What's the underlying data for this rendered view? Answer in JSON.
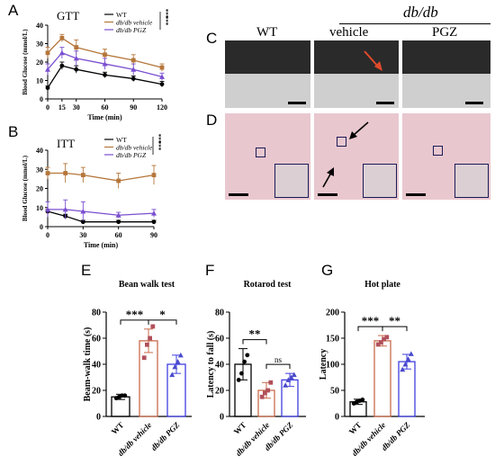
{
  "panel_letters": [
    "A",
    "B",
    "C",
    "D",
    "E",
    "F",
    "G"
  ],
  "colors": {
    "wt": "#000000",
    "vehicle": "#b5763a",
    "pgz": "#7a4ed0",
    "bar_vehicle": "#c96a4a",
    "bar_pgz": "#3f3fe0",
    "point_vehicle": "#b0505a",
    "point_pgz": "#4a4acc"
  },
  "histology": {
    "labels": {
      "wt": "WT",
      "vehicle": "vehicle",
      "pgz": "PGZ",
      "group": "db/db"
    }
  },
  "chart_data": [
    {
      "id": "A",
      "type": "line",
      "title": "GTT",
      "xlabel": "Time (min)",
      "ylabel": "Blood Glucose (mmol/L)",
      "xlim": [
        0,
        120
      ],
      "ylim": [
        0,
        40
      ],
      "xticks": [
        "0",
        "15",
        "30",
        "60",
        "90",
        "120"
      ],
      "yticks": [
        "0",
        "10",
        "20",
        "30",
        "40"
      ],
      "x": [
        0,
        15,
        30,
        60,
        90,
        120
      ],
      "series": [
        {
          "name": "WT",
          "values": [
            6,
            18,
            16,
            13,
            11,
            8
          ],
          "err": [
            1,
            2,
            2,
            1.5,
            1.5,
            1.5
          ]
        },
        {
          "name": "db/db vehicle",
          "values": [
            25,
            33,
            28,
            24,
            21,
            17
          ],
          "err": [
            3,
            2,
            4,
            3,
            3,
            2
          ]
        },
        {
          "name": "db/db PGZ",
          "values": [
            16,
            25,
            22,
            19,
            16,
            12
          ],
          "err": [
            3,
            3,
            4,
            3,
            3,
            2
          ]
        }
      ],
      "annotations": [
        "***",
        "***"
      ]
    },
    {
      "id": "B",
      "type": "line",
      "title": "ITT",
      "xlabel": "Time (min)",
      "ylabel": "Blood Glucose (mmol/L)",
      "xlim": [
        0,
        90
      ],
      "ylim": [
        0,
        40
      ],
      "xticks": [
        "0",
        "30",
        "60",
        "90"
      ],
      "yticks": [
        "0",
        "10",
        "20",
        "30",
        "40"
      ],
      "x": [
        0,
        15,
        30,
        60,
        90
      ],
      "series": [
        {
          "name": "WT",
          "values": [
            8,
            5.5,
            2.5,
            2.5,
            2.5
          ],
          "err": [
            1,
            1,
            0.8,
            0.8,
            0.8
          ]
        },
        {
          "name": "db/db vehicle",
          "values": [
            28,
            28,
            27,
            24,
            27
          ],
          "err": [
            3,
            5,
            4,
            4,
            5
          ]
        },
        {
          "name": "db/db PGZ",
          "values": [
            9,
            9,
            8,
            6,
            7
          ],
          "err": [
            4,
            5,
            5,
            1.5,
            2
          ]
        }
      ],
      "annotations": [
        "***",
        "***"
      ]
    },
    {
      "id": "E",
      "type": "bar",
      "title": "Bean walk test",
      "ylabel": "Beam-walk time (s)",
      "categories": [
        "WT",
        "db/db vehicle",
        "db/db PGZ"
      ],
      "values": [
        15,
        58,
        40
      ],
      "err": [
        2,
        9,
        7
      ],
      "ylim": [
        0,
        80
      ],
      "yticks": [
        "0",
        "20",
        "40",
        "60",
        "80"
      ],
      "points": [
        [
          14,
          15,
          16,
          16
        ],
        [
          45,
          55,
          60,
          69
        ],
        [
          32,
          38,
          42,
          47
        ]
      ],
      "significance": [
        {
          "from": 0,
          "to": 1,
          "label": "***"
        },
        {
          "from": 1,
          "to": 2,
          "label": "*"
        }
      ]
    },
    {
      "id": "F",
      "type": "bar",
      "title": "Rotarod test",
      "ylabel": "Latency to fall (s)",
      "categories": [
        "WT",
        "db/db vehicle",
        "db/db PGZ"
      ],
      "values": [
        40,
        20,
        28
      ],
      "err": [
        12,
        6,
        5
      ],
      "ylim": [
        0,
        80
      ],
      "yticks": [
        "0",
        "20",
        "40",
        "60",
        "80"
      ],
      "points": [
        [
          28,
          33,
          42,
          47
        ],
        [
          15,
          18,
          20,
          26
        ],
        [
          24,
          28,
          30,
          32
        ]
      ],
      "significance": [
        {
          "from": 0,
          "to": 1,
          "label": "**"
        },
        {
          "from": 1,
          "to": 2,
          "label": "ns"
        }
      ]
    },
    {
      "id": "G",
      "type": "bar",
      "title": "Hot plate",
      "ylabel": "Latency",
      "categories": [
        "WT",
        "db/db vehicle",
        "db/db PGZ"
      ],
      "values": [
        28,
        145,
        105
      ],
      "err": [
        5,
        10,
        14
      ],
      "ylim": [
        0,
        200
      ],
      "yticks": [
        "0",
        "50",
        "100",
        "150",
        "200"
      ],
      "points": [
        [
          25,
          28,
          30,
          32
        ],
        [
          138,
          142,
          148,
          152
        ],
        [
          90,
          100,
          110,
          120
        ]
      ],
      "significance": [
        {
          "from": 0,
          "to": 1,
          "label": "***"
        },
        {
          "from": 1,
          "to": 2,
          "label": "**"
        }
      ]
    }
  ]
}
